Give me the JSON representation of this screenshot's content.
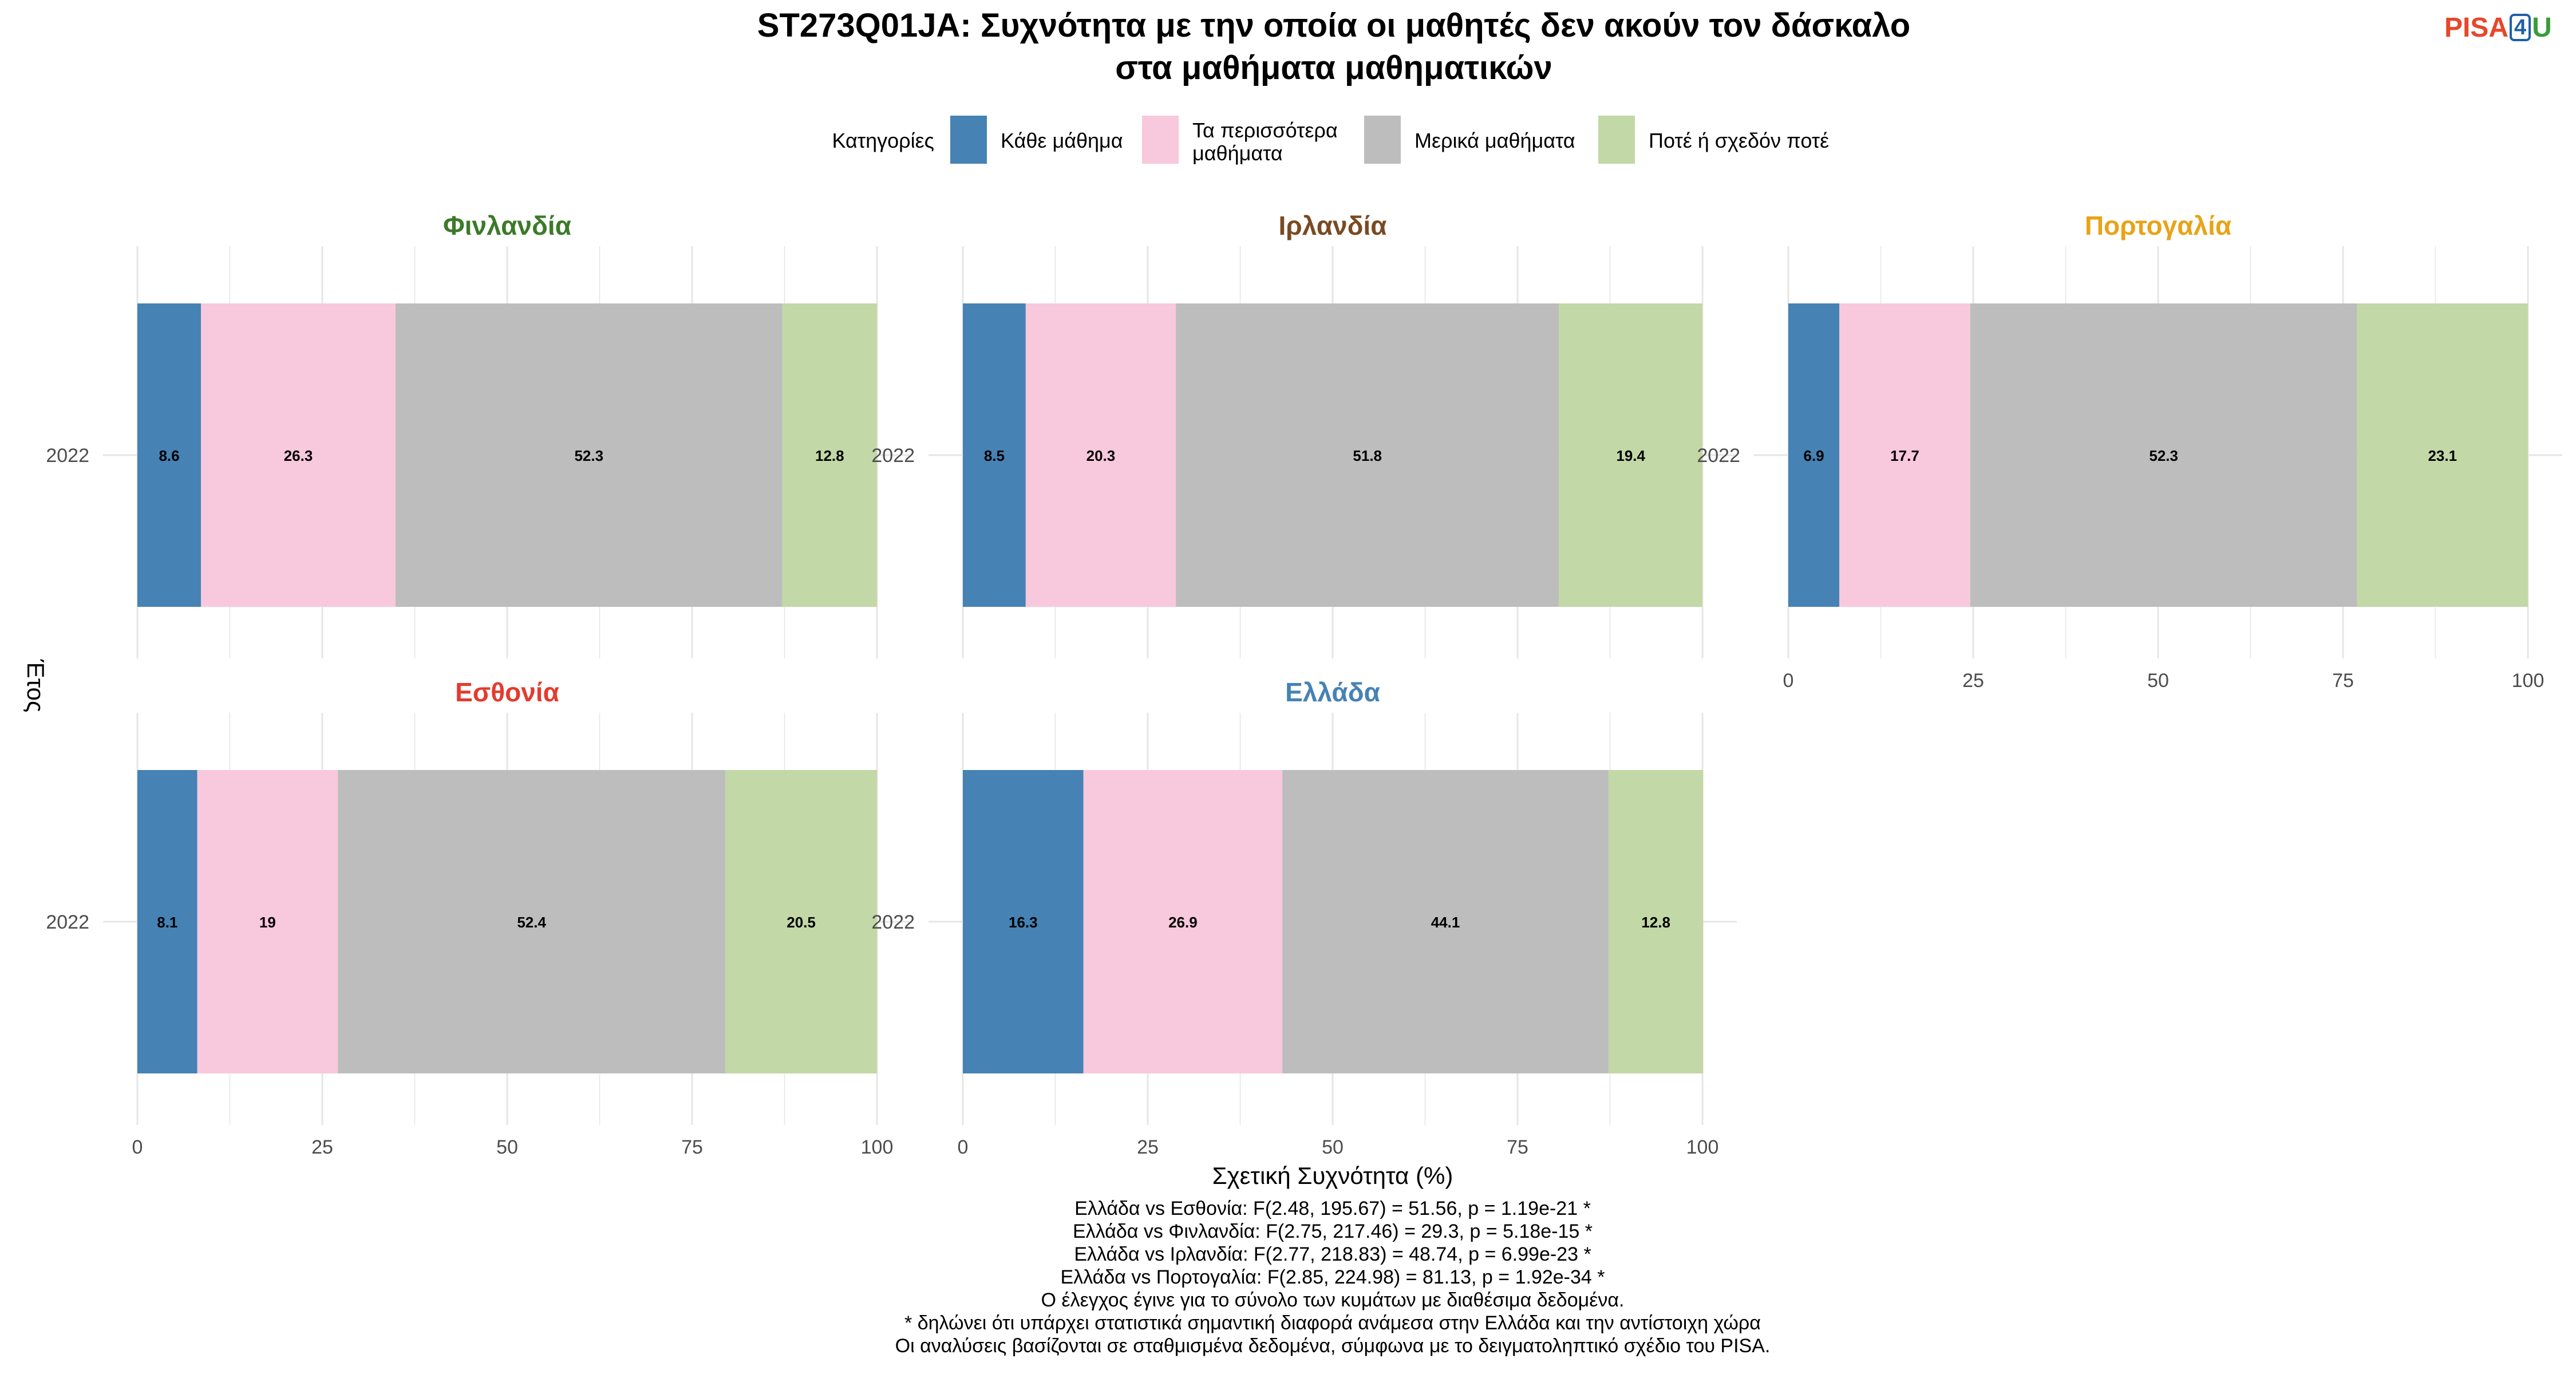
{
  "title_line1": "ST273Q01JA: Συχνότητα με την οποία οι μαθητές δεν ακούν τον δάσκαλο",
  "title_line2": "στα μαθήματα μαθηματικών",
  "logo": {
    "pisa": "PISA",
    "four": "4",
    "u": "U"
  },
  "colors": {
    "grid": "#e6e6e6",
    "text_axis": "#4d4d4d"
  },
  "legend": {
    "title": "Κατηγορίες",
    "items": [
      {
        "label": [
          "Κάθε μάθημα"
        ],
        "color": "#4682b4"
      },
      {
        "label": [
          "Τα περισσότερα",
          "μαθήματα"
        ],
        "color": "#f8c8dc"
      },
      {
        "label": [
          "Μερικά μαθήματα"
        ],
        "color": "#bdbdbd"
      },
      {
        "label": [
          "Ποτέ ή σχεδόν ποτέ"
        ],
        "color": "#c2d8a6"
      }
    ]
  },
  "y_axis_label": "Έτος",
  "x_axis_label": "Σχετική Συχνότητα (%)",
  "x_ticks": [
    0,
    25,
    50,
    75,
    100
  ],
  "chart_data": {
    "type": "bar",
    "orientation": "horizontal-stacked",
    "xlabel": "Σχετική Συχνότητα (%)",
    "ylabel": "Έτος",
    "xlim": [
      0,
      100
    ],
    "legend_position": "top",
    "grid": true,
    "panels": [
      {
        "country": "Φινλανδία",
        "color": "#3c7a2a",
        "year": "2022",
        "values": [
          8.6,
          26.3,
          52.3,
          12.8
        ]
      },
      {
        "country": "Ιρλανδία",
        "color": "#7a4a22",
        "year": "2022",
        "values": [
          8.5,
          20.3,
          51.8,
          19.4
        ]
      },
      {
        "country": "Πορτογαλία",
        "color": "#e8a317",
        "year": "2022",
        "values": [
          6.9,
          17.7,
          52.3,
          23.1
        ]
      },
      {
        "country": "Εσθονία",
        "color": "#e33b2e",
        "year": "2022",
        "values": [
          8.1,
          19,
          52.4,
          20.5
        ]
      },
      {
        "country": "Ελλάδα",
        "color": "#4682b4",
        "year": "2022",
        "values": [
          16.3,
          26.9,
          44.1,
          12.8
        ]
      }
    ]
  },
  "footnotes": [
    "Ελλάδα vs Εσθονία: F(2.48, 195.67) = 51.56, p = 1.19e-21 *",
    "Ελλάδα vs Φινλανδία: F(2.75, 217.46) = 29.3, p = 5.18e-15 *",
    "Ελλάδα vs Ιρλανδία: F(2.77, 218.83) = 48.74, p = 6.99e-23 *",
    "Ελλάδα vs Πορτογαλία: F(2.85, 224.98) = 81.13, p = 1.92e-34 *",
    "Ο έλεγχος έγινε για το σύνολο των κυμάτων με διαθέσιμα δεδομένα.",
    "* δηλώνει ότι υπάρχει στατιστικά σημαντική διαφορά ανάμεσα στην Ελλάδα και την αντίστοιχη χώρα",
    "Οι αναλύσεις βασίζονται σε σταθμισμένα δεδομένα, σύμφωνα με το δειγματοληπτικό σχέδιο του PISA."
  ]
}
